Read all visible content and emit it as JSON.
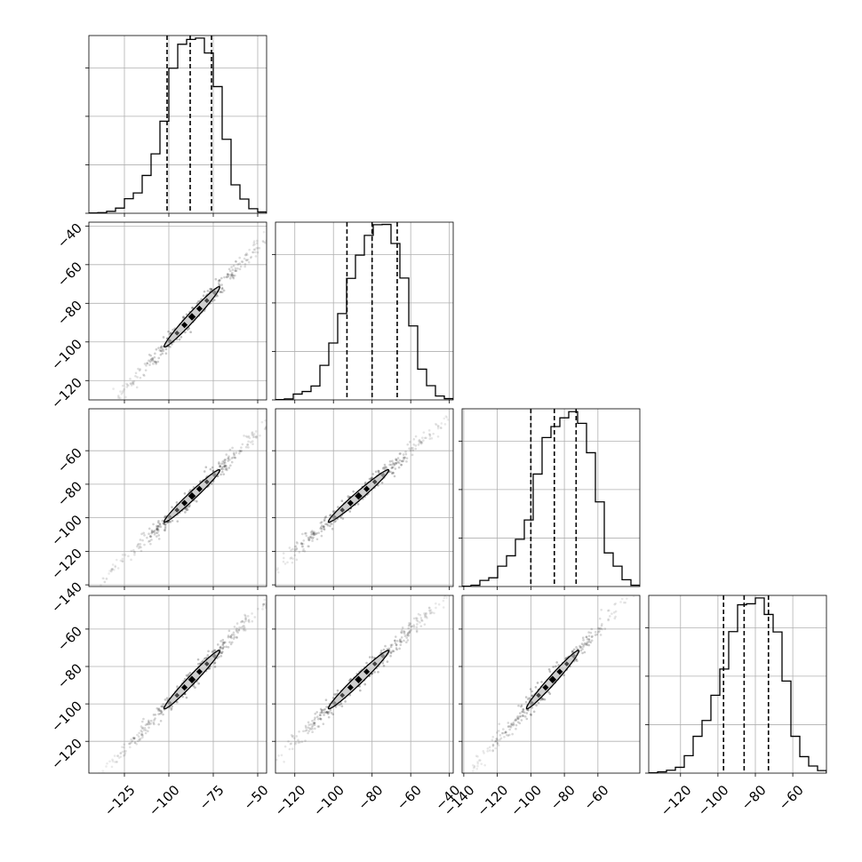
{
  "chart_data": {
    "type": "corner",
    "parameters": 4,
    "grid": true,
    "quantiles": [
      0.16,
      0.5,
      0.84
    ],
    "ranges": [
      [
        -145,
        -45
      ],
      [
        -130,
        -38
      ],
      [
        -141,
        -35
      ],
      [
        -137,
        -42
      ]
    ],
    "x_ticks": [
      [
        -125,
        -100,
        -75,
        -50
      ],
      [
        -120,
        -100,
        -80,
        -60,
        -40
      ],
      [
        -140,
        -120,
        -100,
        -80,
        -60
      ],
      [
        -120,
        -100,
        -80,
        -60
      ]
    ],
    "y_ticks": {
      "1": [
        -120,
        -100,
        -80,
        -60,
        -40
      ],
      "2": [
        -140,
        -120,
        -100,
        -80,
        -60
      ],
      "3": [
        -120,
        -100,
        -80,
        -60
      ]
    },
    "x_tick_labels": [
      [
        "−125",
        "−100",
        "−75",
        "−50"
      ],
      [
        "−120",
        "−100",
        "−80",
        "−60",
        "−40"
      ],
      [
        "−140",
        "−120",
        "−100",
        "−80",
        "−60"
      ],
      [
        "−120",
        "−100",
        "−80",
        "−60"
      ]
    ],
    "y_tick_labels": {
      "1": [
        "−120",
        "−100",
        "−80",
        "−60",
        "−40"
      ],
      "2": [
        "−140",
        "−120",
        "−100",
        "−80",
        "−60"
      ],
      "3": [
        "−120",
        "−100",
        "−80",
        "−60"
      ]
    },
    "hist_y_max": 0.055,
    "hist_y_ticks": [
      0.015,
      0.03,
      0.045
    ],
    "histograms": [
      {
        "param": 0,
        "bin_edges": [
          -145,
          -140,
          -135,
          -130,
          -125,
          -120,
          -115,
          -110,
          -105,
          -100,
          -95,
          -90,
          -85,
          -80,
          -75,
          -70,
          -65,
          -60,
          -55,
          -50,
          -45
        ],
        "density": [
          0.0001,
          0.0002,
          0.0006,
          0.0016,
          0.0045,
          0.0063,
          0.0117,
          0.0184,
          0.0285,
          0.0449,
          0.0523,
          0.0538,
          0.0542,
          0.0496,
          0.0392,
          0.0229,
          0.0088,
          0.0044,
          0.0014,
          0.0004
        ],
        "quantiles": [
          -101,
          -88,
          -76
        ]
      },
      {
        "param": 1,
        "bin_edges": [
          -130,
          -125.4,
          -120.8,
          -116.2,
          -111.6,
          -107,
          -102.4,
          -97.8,
          -93.2,
          -88.6,
          -84,
          -79.4,
          -74.8,
          -70.2,
          -65.6,
          -61,
          -56.4,
          -51.8,
          -47.2,
          -42.6,
          -38
        ],
        "density": [
          0.0001,
          0.0003,
          0.0018,
          0.0026,
          0.0043,
          0.0107,
          0.0176,
          0.0267,
          0.0376,
          0.0448,
          0.0509,
          0.0542,
          0.0543,
          0.0484,
          0.0377,
          0.0229,
          0.0095,
          0.0044,
          0.0012,
          0.0004
        ],
        "quantiles": [
          -93,
          -80,
          -67
        ]
      },
      {
        "param": 2,
        "bin_edges": [
          -141,
          -135.7,
          -130.4,
          -125.1,
          -119.8,
          -114.5,
          -109.2,
          -103.9,
          -98.6,
          -93.3,
          -88,
          -82.7,
          -77.4,
          -72.1,
          -66.8,
          -61.5,
          -56.2,
          -50.9,
          -45.6,
          -40.3,
          -35
        ],
        "density": [
          0.0001,
          0.0004,
          0.0019,
          0.0027,
          0.0063,
          0.0095,
          0.0146,
          0.0206,
          0.0348,
          0.0461,
          0.0495,
          0.0522,
          0.0541,
          0.0505,
          0.0414,
          0.0262,
          0.0104,
          0.0063,
          0.0021,
          0.0004
        ],
        "quantiles": [
          -100,
          -86,
          -73
        ]
      },
      {
        "param": 3,
        "bin_edges": [
          -137,
          -132.25,
          -127.5,
          -122.75,
          -118,
          -113.25,
          -108.5,
          -103.75,
          -99,
          -94.25,
          -89.5,
          -84.75,
          -80,
          -75.25,
          -70.5,
          -65.75,
          -61,
          -56.25,
          -51.5,
          -46.75,
          -42
        ],
        "density": [
          0.0001,
          0.0004,
          0.0009,
          0.0018,
          0.0054,
          0.0114,
          0.0163,
          0.0241,
          0.0322,
          0.0438,
          0.0521,
          0.0524,
          0.0542,
          0.0491,
          0.0437,
          0.0285,
          0.0114,
          0.0051,
          0.0022,
          0.0008
        ],
        "quantiles": [
          -97,
          -86,
          -73
        ]
      }
    ],
    "scatter_panels": [
      {
        "row": 1,
        "col": 0
      },
      {
        "row": 2,
        "col": 0
      },
      {
        "row": 2,
        "col": 1
      },
      {
        "row": 3,
        "col": 0
      },
      {
        "row": 3,
        "col": 1
      },
      {
        "row": 3,
        "col": 2
      }
    ],
    "posterior": {
      "median": -87,
      "sample_min": -140,
      "sample_max": -40
    }
  }
}
